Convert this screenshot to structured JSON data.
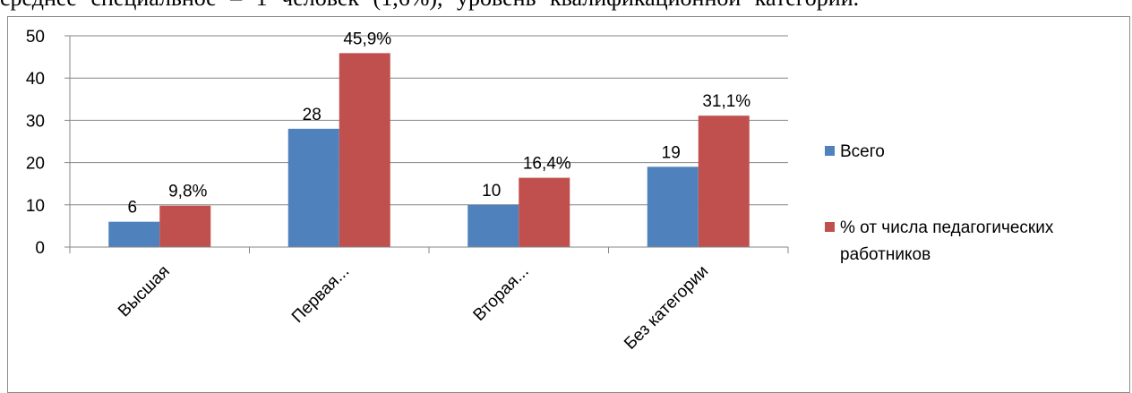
{
  "intro_text": "среднее специальное – 1 человек (1,6%), уровень квалификационной категории.",
  "chart_data": {
    "type": "bar",
    "categories": [
      "Высшая",
      "Первая...",
      "Вторая...",
      "Без категории"
    ],
    "series": [
      {
        "name": "Всего",
        "values": [
          6,
          28,
          10,
          19
        ],
        "labels": [
          "6",
          "28",
          "10",
          "19"
        ],
        "color": "#4f81bd"
      },
      {
        "name": "% от числа педагогических работников",
        "values": [
          9.8,
          45.9,
          16.4,
          31.1
        ],
        "labels": [
          "9,8%",
          "45,9%",
          "16,4%",
          "31,1%"
        ],
        "color": "#c0504d"
      }
    ],
    "ylim": [
      0,
      50
    ],
    "yticks": [
      "0",
      "10",
      "20",
      "30",
      "40",
      "50"
    ],
    "grid": true,
    "legend_position": "right"
  },
  "legend": {
    "series1": "Всего",
    "series2_line1": "% от числа педагогических",
    "series2_line2": "работников"
  }
}
